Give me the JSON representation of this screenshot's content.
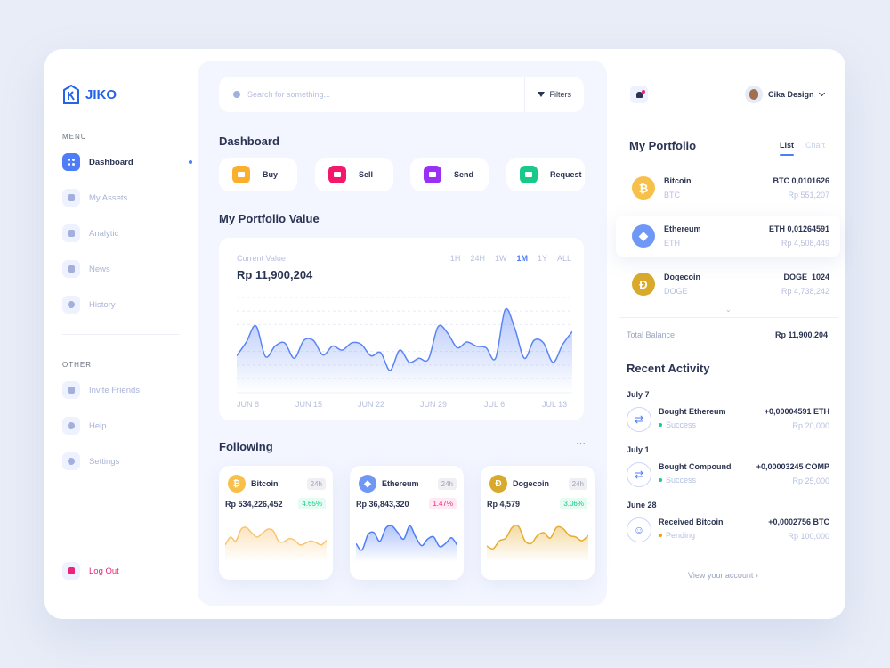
{
  "brand": {
    "name": "JIKO"
  },
  "sidebar": {
    "menu_label": "MENU",
    "menu": [
      {
        "label": "Dashboard",
        "icon": "grid-icon",
        "active": true
      },
      {
        "label": "My Assets",
        "icon": "wallet-icon"
      },
      {
        "label": "Analytic",
        "icon": "chart-icon"
      },
      {
        "label": "News",
        "icon": "document-icon"
      },
      {
        "label": "History",
        "icon": "clock-icon"
      }
    ],
    "other_label": "OTHER",
    "other": [
      {
        "label": "Invite Friends",
        "icon": "folder-icon"
      },
      {
        "label": "Help",
        "icon": "help-icon"
      },
      {
        "label": "Settings",
        "icon": "gear-icon"
      }
    ],
    "logout": "Log Out"
  },
  "search": {
    "placeholder": "Search for something...",
    "filters": "Filters"
  },
  "dashboard": {
    "title": "Dashboard",
    "actions": [
      {
        "label": "Buy",
        "color": "#fbb02d",
        "icon": "cart-icon"
      },
      {
        "label": "Sell",
        "color": "#f5176b",
        "icon": "tag-icon"
      },
      {
        "label": "Send",
        "color": "#9b30f5",
        "icon": "send-icon"
      },
      {
        "label": "Request",
        "color": "#19c98a",
        "icon": "request-icon"
      }
    ]
  },
  "portfolio_value": {
    "title": "My Portfolio Value",
    "current_label": "Current Value",
    "current": "Rp 11,900,204",
    "periods": [
      "1H",
      "24H",
      "1W",
      "1M",
      "1Y",
      "ALL"
    ],
    "active_period": "1M"
  },
  "chart_data": [
    {
      "type": "area",
      "title": "",
      "x_ticks": [
        "JUN 8",
        "JUN 15",
        "JUN 22",
        "JUN 29",
        "JUL 6",
        "JUL 13"
      ],
      "x_range": [
        "Jun 8",
        "Jul 13"
      ],
      "ylim": [
        0,
        100
      ],
      "grid": "dashed horizontal",
      "color": "#5b84f5",
      "values": [
        28,
        45,
        65,
        27,
        40,
        44,
        25,
        47,
        47,
        29,
        40,
        35,
        44,
        42,
        28,
        32,
        10,
        35,
        20,
        25,
        24,
        64,
        56,
        38,
        45,
        40,
        38,
        25,
        85,
        62,
        25,
        47,
        44,
        20,
        42,
        58
      ]
    },
    {
      "type": "area",
      "name": "Bitcoin",
      "color": "#f9c46f",
      "values": [
        40,
        50,
        45,
        60,
        62,
        55,
        50,
        55,
        60,
        58,
        45,
        44,
        48,
        46,
        40,
        42,
        45,
        43,
        40,
        46
      ]
    },
    {
      "type": "area",
      "name": "Ethereum",
      "color": "#4f7cf7",
      "values": [
        35,
        20,
        55,
        60,
        40,
        70,
        75,
        60,
        45,
        75,
        50,
        30,
        45,
        50,
        28,
        35,
        48,
        30
      ]
    },
    {
      "type": "area",
      "name": "Dogecoin",
      "color": "#e6ac2d",
      "values": [
        35,
        30,
        45,
        50,
        70,
        72,
        45,
        40,
        55,
        60,
        50,
        70,
        68,
        55,
        52,
        45,
        55
      ]
    }
  ],
  "following": {
    "title": "Following",
    "more": "···",
    "items": [
      {
        "name": "Bitcoin",
        "period": "24h",
        "price": "Rp 534,226,452",
        "change": "4.65%",
        "trend": "up",
        "coin_color": "#f7c04a",
        "symbol": "₿"
      },
      {
        "name": "Ethereum",
        "period": "24h",
        "price": "Rp 36,843,320",
        "change": "1.47%",
        "trend": "down",
        "coin_color": "#6f98f6",
        "symbol": "◆"
      },
      {
        "name": "Dogecoin",
        "period": "24h",
        "price": "Rp 4,579",
        "change": "3.06%",
        "trend": "up",
        "coin_color": "#d8a92a",
        "symbol": "Ð"
      }
    ]
  },
  "header": {
    "user": "Cika Design"
  },
  "my_portfolio": {
    "title": "My Portfolio",
    "tabs": [
      "List",
      "Chart"
    ],
    "active_tab": "List",
    "items": [
      {
        "name": "Bitcoin",
        "ticker": "BTC",
        "amount": "BTC 0,0101626",
        "value": "Rp 551,207",
        "color": "#f7c04a",
        "symbol": "₿"
      },
      {
        "name": "Ethereum",
        "ticker": "ETH",
        "amount": "ETH 0,01264591",
        "value": "Rp 4,508,449",
        "color": "#6f98f6",
        "symbol": "◆"
      },
      {
        "name": "Dogecoin",
        "ticker": "DOGE",
        "amount": "DOGE  1024",
        "value": "Rp 4,738,242",
        "color": "#d8a92a",
        "symbol": "Ð"
      }
    ],
    "total_label": "Total Balance",
    "total": "Rp 11,900,204"
  },
  "recent_activity": {
    "title": "Recent Activity",
    "items": [
      {
        "date": "July 7",
        "title": "Bought Ethereum",
        "status": "Success",
        "amount": "+0,00004591 ETH",
        "value": "Rp 20,000",
        "icon": "swap-icon"
      },
      {
        "date": "July 1",
        "title": "Bought Compound",
        "status": "Success",
        "amount": "+0,00003245 COMP",
        "value": "Rp 25,000",
        "icon": "swap-icon"
      },
      {
        "date": "June 28",
        "title": "Received Bitcoin",
        "status": "Pending",
        "amount": "+0,0002756 BTC",
        "value": "Rp 100,000",
        "icon": "user-icon"
      }
    ],
    "status_colors": {
      "Success": "#19c98a",
      "Pending": "#f59e0b"
    },
    "view_account": "View your account"
  }
}
